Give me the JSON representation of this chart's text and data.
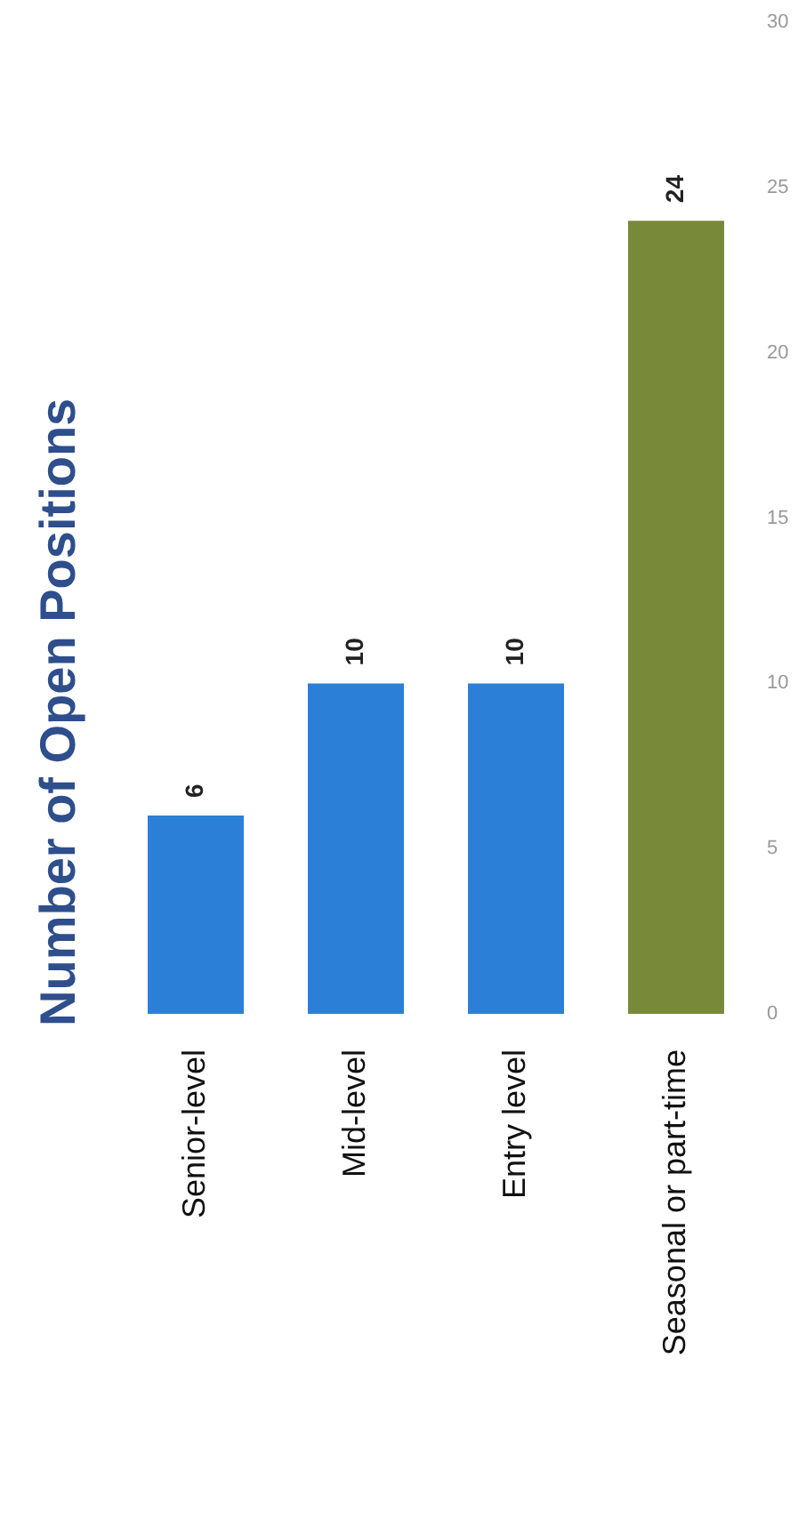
{
  "chart_data": {
    "type": "bar",
    "title": "Number of Open Positions",
    "categories": [
      "Senior-level",
      "Mid-level",
      "Entry level",
      "Seasonal or part-time"
    ],
    "values": [
      6,
      10,
      10,
      24
    ],
    "colors": [
      "#2b7fd6",
      "#2b7fd6",
      "#2b7fd6",
      "#78893a"
    ],
    "ylim": [
      0,
      30
    ],
    "yticks": [
      0,
      5,
      10,
      15,
      20,
      25,
      30
    ],
    "data_labels": true,
    "grid": false,
    "legend": false
  }
}
